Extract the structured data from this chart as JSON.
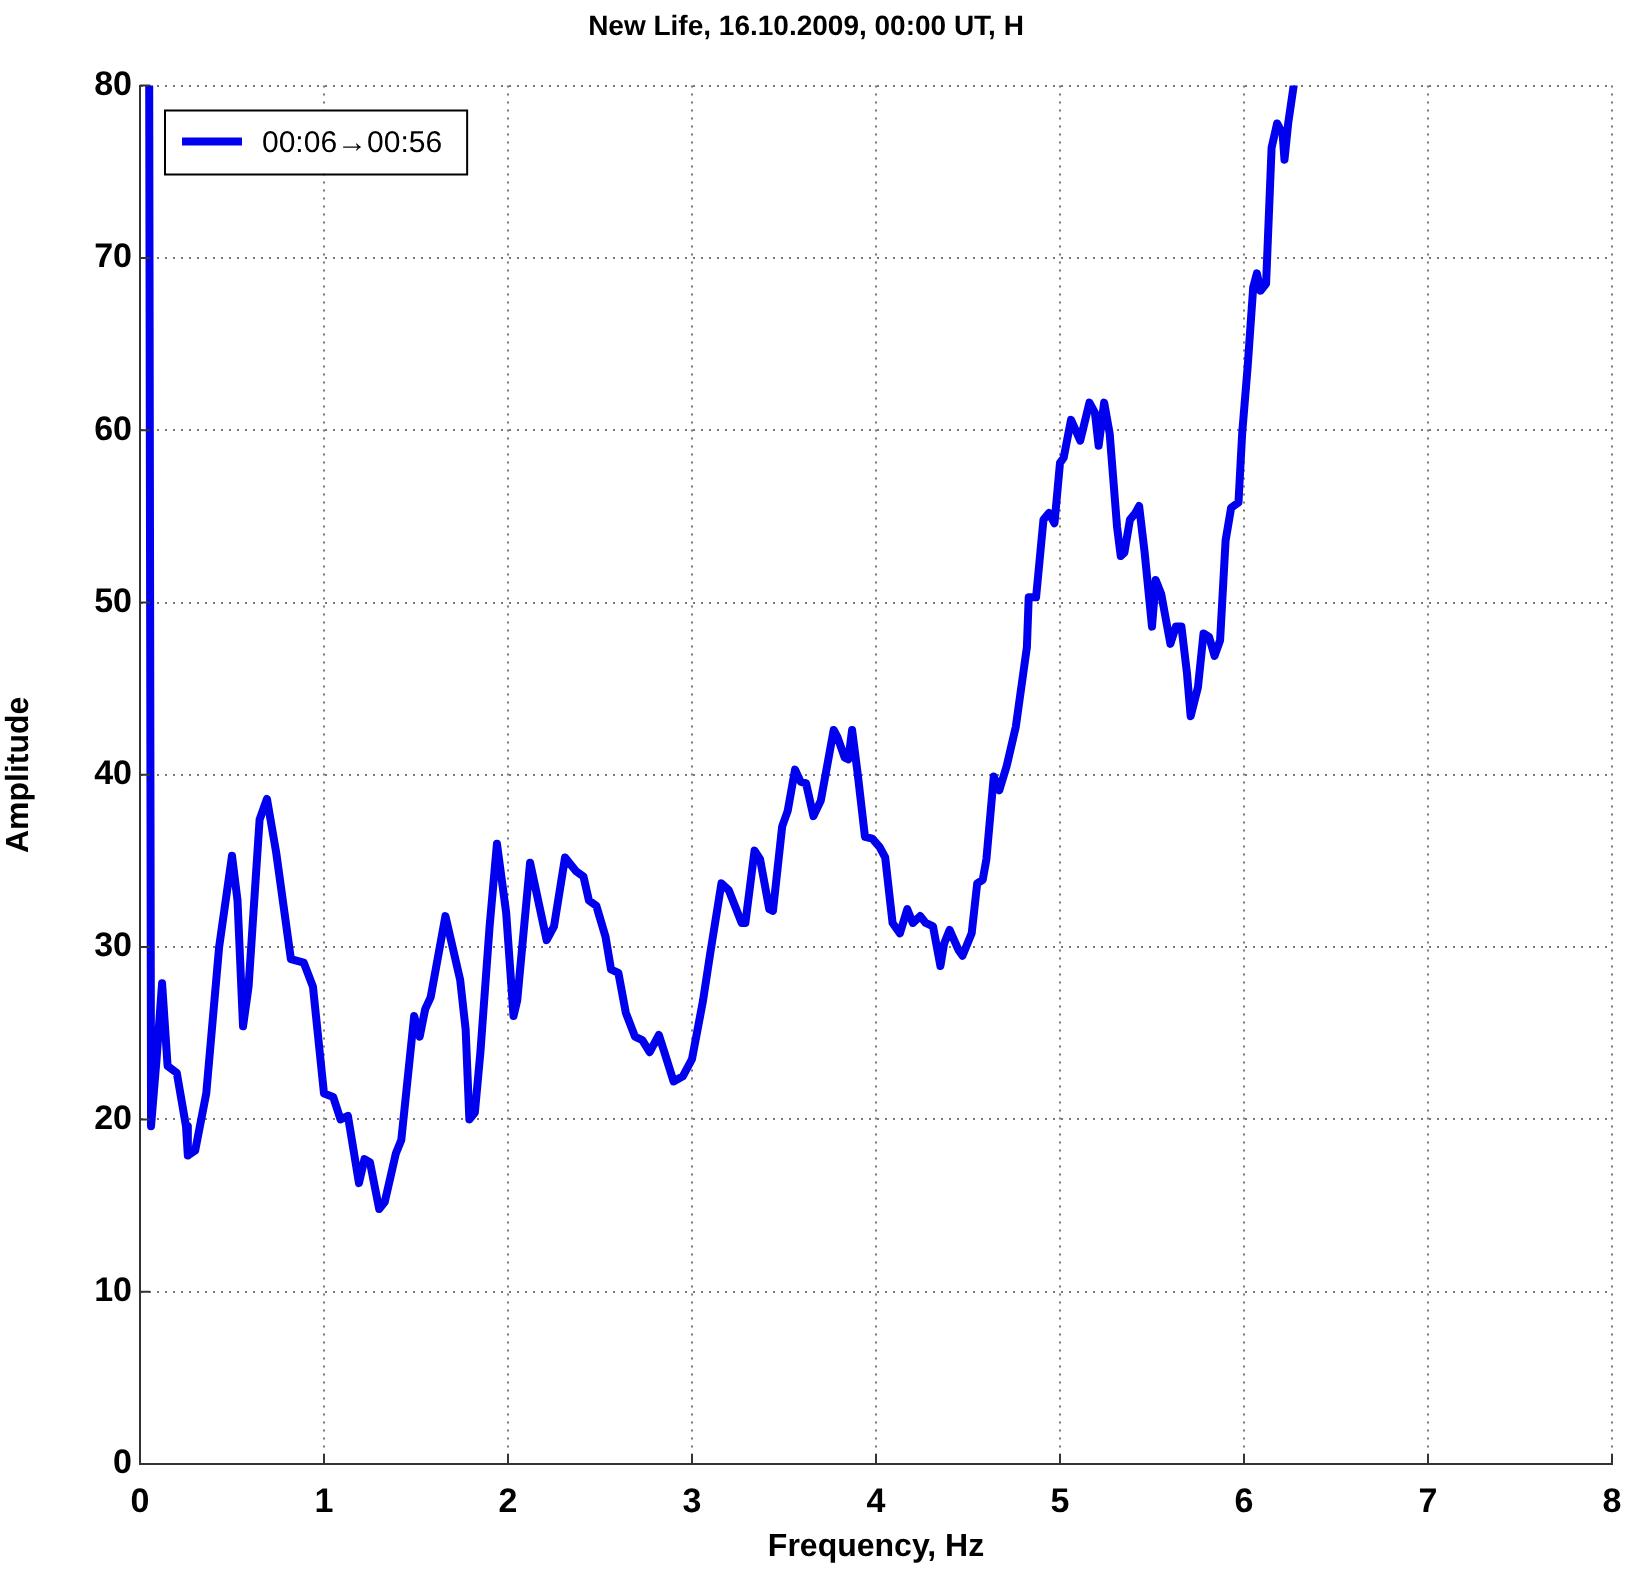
{
  "chart_data": {
    "type": "line",
    "title": "New Life, 16.10.2009, 00:00 UT, H",
    "xlabel": "Frequency, Hz",
    "ylabel": "Amplitude",
    "x": [
      0.05,
      0.06,
      0.09,
      0.12,
      0.15,
      0.2,
      0.25,
      0.26,
      0.3,
      0.36,
      0.43,
      0.5,
      0.53,
      0.56,
      0.59,
      0.65,
      0.69,
      0.74,
      0.82,
      0.89,
      0.94,
      1.0,
      1.05,
      1.09,
      1.13,
      1.19,
      1.22,
      1.25,
      1.3,
      1.33,
      1.39,
      1.42,
      1.49,
      1.52,
      1.55,
      1.58,
      1.66,
      1.74,
      1.77,
      1.79,
      1.82,
      1.85,
      1.9,
      1.94,
      1.99,
      2.03,
      2.05,
      2.12,
      2.21,
      2.25,
      2.31,
      2.37,
      2.41,
      2.44,
      2.48,
      2.53,
      2.56,
      2.6,
      2.64,
      2.69,
      2.73,
      2.77,
      2.82,
      2.85,
      2.9,
      2.95,
      3.0,
      3.06,
      3.1,
      3.16,
      3.2,
      3.27,
      3.29,
      3.34,
      3.37,
      3.42,
      3.44,
      3.49,
      3.52,
      3.56,
      3.59,
      3.62,
      3.66,
      3.7,
      3.77,
      3.79,
      3.83,
      3.85,
      3.87,
      3.9,
      3.94,
      3.98,
      4.02,
      4.05,
      4.09,
      4.13,
      4.17,
      4.2,
      4.24,
      4.27,
      4.31,
      4.35,
      4.37,
      4.4,
      4.45,
      4.47,
      4.52,
      4.55,
      4.58,
      4.6,
      4.64,
      4.67,
      4.71,
      4.76,
      4.82,
      4.83,
      4.87,
      4.91,
      4.94,
      4.97,
      5.0,
      5.02,
      5.06,
      5.11,
      5.16,
      5.19,
      5.21,
      5.24,
      5.27,
      5.31,
      5.33,
      5.35,
      5.38,
      5.41,
      5.43,
      5.46,
      5.5,
      5.52,
      5.55,
      5.6,
      5.63,
      5.66,
      5.69,
      5.71,
      5.75,
      5.78,
      5.81,
      5.84,
      5.87,
      5.9,
      5.93,
      5.97,
      5.99,
      6.02,
      6.05,
      6.07,
      6.09,
      6.12,
      6.15,
      6.18,
      6.21,
      6.22,
      6.24,
      6.27
    ],
    "series": [
      {
        "name": "00:06→00:56",
        "color": "#0000ee",
        "values": [
          80,
          19.6,
          23.5,
          27.9,
          23.1,
          22.7,
          19.6,
          17.9,
          18.2,
          21.5,
          30.0,
          35.3,
          32.7,
          25.4,
          27.7,
          37.4,
          38.6,
          35.5,
          29.3,
          29.1,
          27.7,
          21.5,
          21.3,
          20.0,
          20.2,
          16.3,
          17.7,
          17.5,
          14.8,
          15.2,
          18.0,
          18.8,
          26.0,
          24.8,
          26.4,
          27.1,
          31.8,
          28.1,
          25.2,
          20.0,
          20.4,
          23.9,
          31.2,
          36.0,
          32.0,
          26.0,
          26.9,
          34.9,
          30.4,
          31.2,
          35.2,
          34.4,
          34.1,
          32.7,
          32.4,
          30.6,
          28.7,
          28.5,
          26.2,
          24.8,
          24.6,
          23.9,
          24.9,
          23.9,
          22.2,
          22.5,
          23.5,
          26.9,
          29.7,
          33.7,
          33.3,
          31.4,
          31.4,
          35.6,
          35.1,
          32.2,
          32.1,
          37.0,
          37.9,
          40.3,
          39.6,
          39.5,
          37.6,
          38.5,
          42.6,
          42.2,
          41.0,
          40.9,
          42.6,
          40.1,
          36.4,
          36.3,
          35.8,
          35.2,
          31.4,
          30.8,
          32.2,
          31.4,
          31.8,
          31.4,
          31.2,
          28.9,
          30.2,
          31.0,
          29.8,
          29.5,
          30.8,
          33.7,
          33.9,
          35.1,
          39.9,
          39.1,
          40.5,
          42.8,
          47.4,
          50.3,
          50.3,
          54.8,
          55.2,
          54.6,
          58.1,
          58.4,
          60.6,
          59.4,
          61.6,
          61.0,
          59.1,
          61.6,
          59.8,
          54.4,
          52.7,
          52.9,
          54.8,
          55.2,
          55.6,
          52.9,
          48.6,
          51.3,
          50.5,
          47.6,
          48.6,
          48.6,
          45.9,
          43.4,
          45.1,
          48.2,
          48.0,
          46.9,
          47.8,
          53.6,
          55.5,
          55.8,
          59.8,
          63.7,
          68.3,
          69.1,
          68.1,
          68.5,
          76.4,
          77.8,
          77.2,
          75.7,
          77.8,
          80
        ]
      }
    ],
    "xlim": [
      0,
      8
    ],
    "ylim": [
      0,
      80
    ],
    "xticks": [
      0,
      1,
      2,
      3,
      4,
      5,
      6,
      7,
      8
    ],
    "yticks": [
      0,
      10,
      20,
      30,
      40,
      50,
      60,
      70,
      80
    ],
    "grid": true,
    "legend": "top left",
    "line_style": "solid"
  }
}
